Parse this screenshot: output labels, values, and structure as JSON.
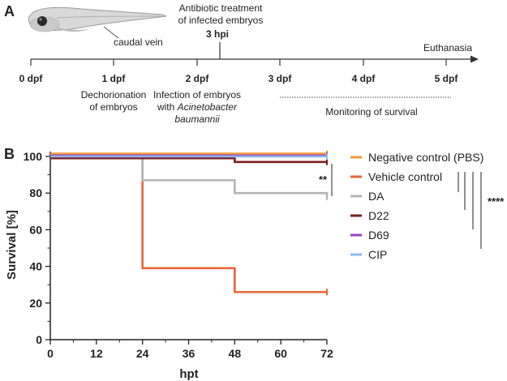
{
  "panel_a": {
    "label": "A",
    "fish_label": "caudal vein",
    "treatment_line1": "Antibiotic treatment",
    "treatment_line2": "of infected embryos",
    "treatment_time": "3 hpi",
    "end_label": "Euthanasia",
    "ticks": [
      "0 dpf",
      "1 dpf",
      "2 dpf",
      "3 dpf",
      "4 dpf",
      "5 dpf"
    ],
    "dechorionation_line1": "Dechorionation",
    "dechorionation_line2": "of embryos",
    "infection_line1": "Infection of embryos",
    "infection_line2_prefix": "with ",
    "infection_line2_italic": "Acinetobacter",
    "infection_line3_italic": "baumannii",
    "monitoring_label": "Monitoring of survival"
  },
  "panel_b": {
    "label": "B",
    "significance_inner": "**",
    "significance_outer": "****"
  },
  "chart_data": {
    "type": "line",
    "step": true,
    "xlabel": "hpt",
    "ylabel": "Survival [%]",
    "xlim": [
      0,
      72
    ],
    "ylim": [
      0,
      100
    ],
    "x_ticks": [
      "0",
      "12",
      "24",
      "36",
      "48",
      "60",
      "72"
    ],
    "y_ticks": [
      "0",
      "20",
      "40",
      "60",
      "80",
      "100"
    ],
    "x_tick_values": [
      0,
      12,
      24,
      36,
      48,
      60,
      72
    ],
    "y_tick_values": [
      0,
      20,
      40,
      60,
      80,
      100
    ],
    "legend_position": "right",
    "series": [
      {
        "name": "Negative control (PBS)",
        "color": "#f39a36",
        "x": [
          0,
          72
        ],
        "y": [
          101.5,
          101.5
        ]
      },
      {
        "name": "Vehicle control",
        "color": "#e8643a",
        "x": [
          0,
          24,
          48,
          72
        ],
        "y": [
          100,
          39,
          26,
          26
        ]
      },
      {
        "name": "DA",
        "color": "#b4b4b4",
        "x": [
          0,
          24,
          48,
          72
        ],
        "y": [
          100,
          87,
          80,
          78
        ]
      },
      {
        "name": "D22",
        "color": "#7a1f1f",
        "x": [
          0,
          24,
          48,
          72
        ],
        "y": [
          99,
          99,
          97,
          97
        ]
      },
      {
        "name": "D69",
        "color": "#9a3fc6",
        "x": [
          0,
          72
        ],
        "y": [
          100.5,
          100.5
        ]
      },
      {
        "name": "CIP",
        "color": "#8cb8f0",
        "x": [
          0,
          72
        ],
        "y": [
          100,
          100
        ]
      }
    ]
  }
}
